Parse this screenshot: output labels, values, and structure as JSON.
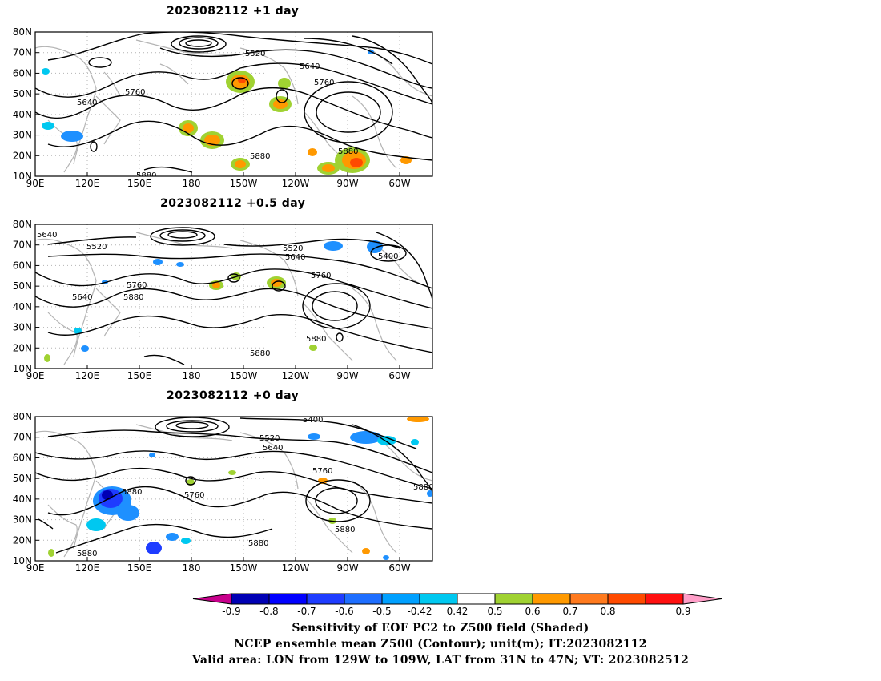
{
  "panels": [
    {
      "title": "2023082112  +1 day",
      "contour_labels": [
        "5520",
        "5640",
        "5760",
        "5640",
        "5760",
        "5880",
        "5880",
        "5880"
      ]
    },
    {
      "title": "2023082112  +0.5 day",
      "contour_labels": [
        "5640",
        "5520",
        "5520",
        "5640",
        "5400",
        "5760",
        "5760",
        "5640",
        "5880",
        "5880",
        "5880"
      ]
    },
    {
      "title": "2023082112  +0 day",
      "contour_labels": [
        "5400",
        "5520",
        "5640",
        "5760",
        "5880",
        "5880",
        "5760",
        "5880",
        "5880",
        "5880"
      ]
    }
  ],
  "axes": {
    "lat_labels": [
      "80N",
      "70N",
      "60N",
      "50N",
      "40N",
      "30N",
      "20N",
      "10N"
    ],
    "lon_labels": [
      "90E",
      "120E",
      "150E",
      "180",
      "150W",
      "120W",
      "90W",
      "60W"
    ]
  },
  "colorbar": {
    "ticks": [
      "-0.9",
      "-0.8",
      "-0.7",
      "-0.6",
      "-0.5",
      "-0.42",
      "0.42",
      "0.5",
      "0.6",
      "0.7",
      "0.8",
      "0.9"
    ],
    "colors": [
      "#0000b4",
      "#0000ff",
      "#1e3cff",
      "#1e6eff",
      "#00a0ff",
      "#00c8f0",
      "#ffffff",
      "#a0d232",
      "#ff9900",
      "#ff7a1e",
      "#ff4a00",
      "#ff1010"
    ],
    "low_arrow_color": "#c8008c",
    "high_arrow_color": "#ff9ec8"
  },
  "caption": {
    "line1": "Sensitivity of EOF PC2 to Z500 field (Shaded)",
    "line2": "NCEP ensemble mean Z500 (Contour); unit(m); IT:2023082112",
    "line3": "Valid area: LON from 129W to 109W, LAT from 31N to 47N; VT: 2023082512"
  },
  "shading_colors": {
    "blue": "#1e90ff",
    "cyan": "#00c8f0",
    "darkblue": "#1e3cff",
    "green": "#a0d232",
    "orange": "#ff9900",
    "red": "#ff4a00",
    "coast": "#b4b4b4"
  }
}
